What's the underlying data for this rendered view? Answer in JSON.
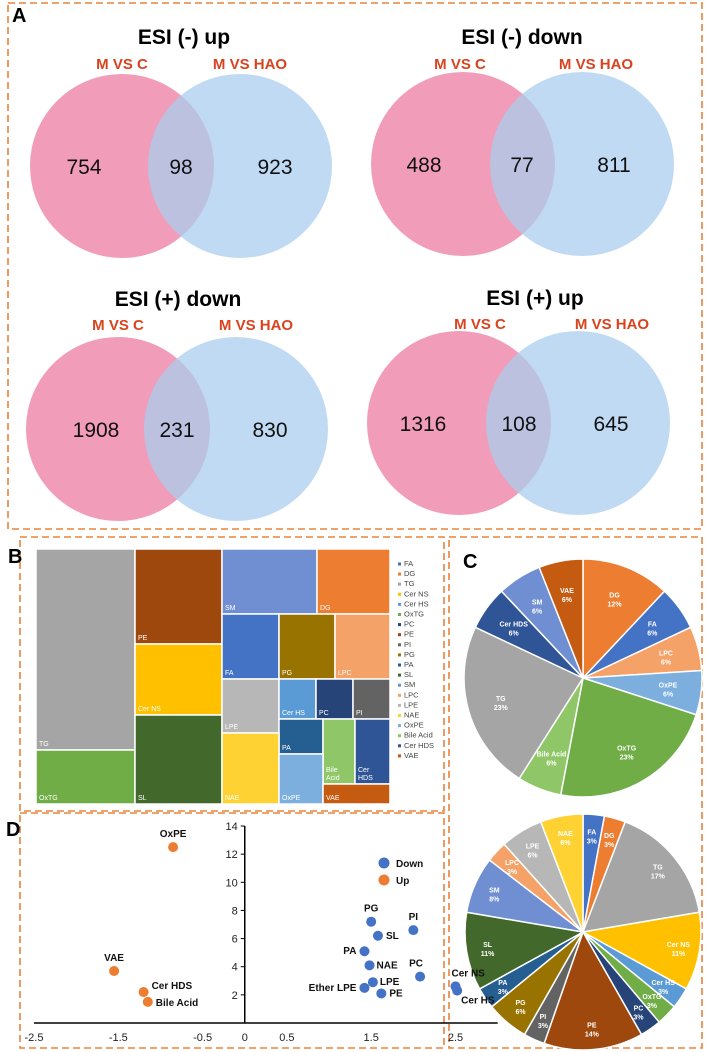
{
  "panels": {
    "A": "A",
    "B": "B",
    "C": "C",
    "D": "D"
  },
  "colors": {
    "border": "#E8843C",
    "set1": "#EE83A6",
    "set2": "#A9CDEE",
    "title_red": "#D9431E",
    "down": "#4472C4",
    "up": "#ED7D31"
  },
  "chart_data": [
    {
      "type": "venn",
      "panel": "A",
      "diagrams": [
        {
          "title": "ESI (-) up",
          "set1": "M VS C",
          "set2": "M VS HAO",
          "only1": "754",
          "both": "98",
          "only2": "923"
        },
        {
          "title": "ESI (-) down",
          "set1": "M VS C",
          "set2": "M VS HAO",
          "only1": "488",
          "both": "77",
          "only2": "811"
        },
        {
          "title": "ESI (+) down",
          "set1": "M VS C",
          "set2": "M VS HAO",
          "only1": "1908",
          "both": "231",
          "only2": "830"
        },
        {
          "title": "ESI (+) up",
          "set1": "M VS C",
          "set2": "M VS HAO",
          "only1": "1316",
          "both": "108",
          "only2": "645"
        }
      ]
    },
    {
      "type": "treemap",
      "panel": "B",
      "tiles": [
        {
          "label": "TG",
          "color": "#A5A5A5"
        },
        {
          "label": "OxTG",
          "color": "#70AD47"
        },
        {
          "label": "PE",
          "color": "#9E480E"
        },
        {
          "label": "Cer NS",
          "color": "#FFC000"
        },
        {
          "label": "SL",
          "color": "#43682B"
        },
        {
          "label": "SM",
          "color": "#6F8FD2"
        },
        {
          "label": "DG",
          "color": "#ED7D31"
        },
        {
          "label": "FA",
          "color": "#4472C4"
        },
        {
          "label": "PG",
          "color": "#997300"
        },
        {
          "label": "LPC",
          "color": "#F4A268"
        },
        {
          "label": "LPE",
          "color": "#B7B7B7"
        },
        {
          "label": "Cer HS",
          "color": "#5B9BD5"
        },
        {
          "label": "PC",
          "color": "#264478"
        },
        {
          "label": "PI",
          "color": "#636363"
        },
        {
          "label": "PA",
          "color": "#255E91"
        },
        {
          "label": "Bile Acid",
          "color": "#8FC768"
        },
        {
          "label": "Cer HDS",
          "color": "#2F5597"
        },
        {
          "label": "NAE",
          "color": "#FFD233"
        },
        {
          "label": "OxPE",
          "color": "#7CAFDD"
        },
        {
          "label": "VAE",
          "color": "#C55A11"
        }
      ],
      "legend": [
        "FA",
        "DG",
        "TG",
        "Cer NS",
        "Cer HS",
        "OxTG",
        "PC",
        "PE",
        "PI",
        "PG",
        "PA",
        "SL",
        "SM",
        "LPC",
        "LPE",
        "NAE",
        "OxPE",
        "Bile Acid",
        "Cer HDS",
        "VAE"
      ],
      "legend_colors": [
        "#4472C4",
        "#ED7D31",
        "#A5A5A5",
        "#FFC000",
        "#5B9BD5",
        "#70AD47",
        "#264478",
        "#9E480E",
        "#636363",
        "#997300",
        "#255E91",
        "#43682B",
        "#6F8FD2",
        "#F4A268",
        "#B7B7B7",
        "#FFD233",
        "#7CAFDD",
        "#8FC768",
        "#2F5597",
        "#C55A11"
      ]
    },
    {
      "type": "pie",
      "panel": "C",
      "name": "top",
      "slices": [
        {
          "label": "DG",
          "pct": "12%",
          "value": 12,
          "color": "#ED7D31"
        },
        {
          "label": "FA",
          "pct": "6%",
          "value": 6,
          "color": "#4472C4"
        },
        {
          "label": "LPC",
          "pct": "6%",
          "value": 6,
          "color": "#F4A268"
        },
        {
          "label": "OxPE",
          "pct": "6%",
          "value": 6,
          "color": "#7CAFDD"
        },
        {
          "label": "OxTG",
          "pct": "23%",
          "value": 23,
          "color": "#70AD47"
        },
        {
          "label": "Bile Acid",
          "pct": "6%",
          "value": 6,
          "color": "#8FC768"
        },
        {
          "label": "TG",
          "pct": "23%",
          "value": 23,
          "color": "#A5A5A5"
        },
        {
          "label": "Cer HDS",
          "pct": "6%",
          "value": 6,
          "color": "#2F5597"
        },
        {
          "label": "SM",
          "pct": "6%",
          "value": 6,
          "color": "#6F8FD2"
        },
        {
          "label": "VAE",
          "pct": "6%",
          "value": 6,
          "color": "#C55A11"
        }
      ]
    },
    {
      "type": "pie",
      "panel": "C",
      "name": "bottom",
      "slices": [
        {
          "label": "FA",
          "pct": "3%",
          "value": 3,
          "color": "#4472C4"
        },
        {
          "label": "DG",
          "pct": "3%",
          "value": 3,
          "color": "#ED7D31"
        },
        {
          "label": "TG",
          "pct": "17%",
          "value": 17,
          "color": "#A5A5A5"
        },
        {
          "label": "Cer NS",
          "pct": "11%",
          "value": 11,
          "color": "#FFC000"
        },
        {
          "label": "Cer HS",
          "pct": "3%",
          "value": 3,
          "color": "#5B9BD5"
        },
        {
          "label": "OxTG",
          "pct": "3%",
          "value": 3,
          "color": "#70AD47"
        },
        {
          "label": "PC",
          "pct": "3%",
          "value": 3,
          "color": "#264478"
        },
        {
          "label": "PE",
          "pct": "14%",
          "value": 14,
          "color": "#9E480E"
        },
        {
          "label": "PI",
          "pct": "3%",
          "value": 3,
          "color": "#636363"
        },
        {
          "label": "PG",
          "pct": "6%",
          "value": 6,
          "color": "#997300"
        },
        {
          "label": "PA",
          "pct": "3%",
          "value": 3,
          "color": "#255E91"
        },
        {
          "label": "SL",
          "pct": "11%",
          "value": 11,
          "color": "#43682B"
        },
        {
          "label": "SM",
          "pct": "8%",
          "value": 8,
          "color": "#6F8FD2"
        },
        {
          "label": "LPC",
          "pct": "3%",
          "value": 3,
          "color": "#F4A268"
        },
        {
          "label": "LPE",
          "pct": "6%",
          "value": 6,
          "color": "#B7B7B7"
        },
        {
          "label": "NAE",
          "pct": "6%",
          "value": 6,
          "color": "#FFD233"
        }
      ]
    },
    {
      "type": "scatter",
      "panel": "D",
      "xlim": [
        -2.5,
        3.0
      ],
      "ylim": [
        0,
        14
      ],
      "xticks": [
        -2.5,
        -1.5,
        -0.5,
        0,
        0.5,
        1.5,
        2.5
      ],
      "xtick_labels": [
        "-2.5",
        "-1.5",
        "-0.5",
        "0",
        "0.5",
        "1.5",
        "2.5"
      ],
      "yticks": [
        2,
        4,
        6,
        8,
        10,
        12,
        14
      ],
      "ytick_labels": [
        "2",
        "4",
        "6",
        "8",
        "10",
        "12",
        "14"
      ],
      "legend": [
        {
          "name": "Down",
          "color": "#4472C4"
        },
        {
          "name": "Up",
          "color": "#ED7D31"
        }
      ],
      "points": [
        {
          "label": "OxPE",
          "x": -0.85,
          "y": 12.5,
          "group": "Up"
        },
        {
          "label": "VAE",
          "x": -1.55,
          "y": 3.7,
          "group": "Up"
        },
        {
          "label": "Cer HDS",
          "x": -1.2,
          "y": 2.2,
          "group": "Up"
        },
        {
          "label": "Bile Acid",
          "x": -1.15,
          "y": 1.5,
          "group": "Up"
        },
        {
          "label": "PG",
          "x": 1.5,
          "y": 7.2,
          "group": "Down"
        },
        {
          "label": "SL",
          "x": 1.58,
          "y": 6.2,
          "group": "Down"
        },
        {
          "label": "PI",
          "x": 2.0,
          "y": 6.6,
          "group": "Down"
        },
        {
          "label": "PA",
          "x": 1.42,
          "y": 5.1,
          "group": "Down"
        },
        {
          "label": "NAE",
          "x": 1.48,
          "y": 4.1,
          "group": "Down"
        },
        {
          "label": "LPE",
          "x": 1.52,
          "y": 2.9,
          "group": "Down"
        },
        {
          "label": "Ether LPE",
          "x": 1.42,
          "y": 2.5,
          "group": "Down"
        },
        {
          "label": "PE",
          "x": 1.62,
          "y": 2.1,
          "group": "Down"
        },
        {
          "label": "PC",
          "x": 2.08,
          "y": 3.3,
          "group": "Down"
        },
        {
          "label": "Cer NS",
          "x": 2.5,
          "y": 2.6,
          "group": "Down"
        },
        {
          "label": "Cer HS",
          "x": 2.52,
          "y": 2.3,
          "group": "Down"
        }
      ]
    }
  ]
}
